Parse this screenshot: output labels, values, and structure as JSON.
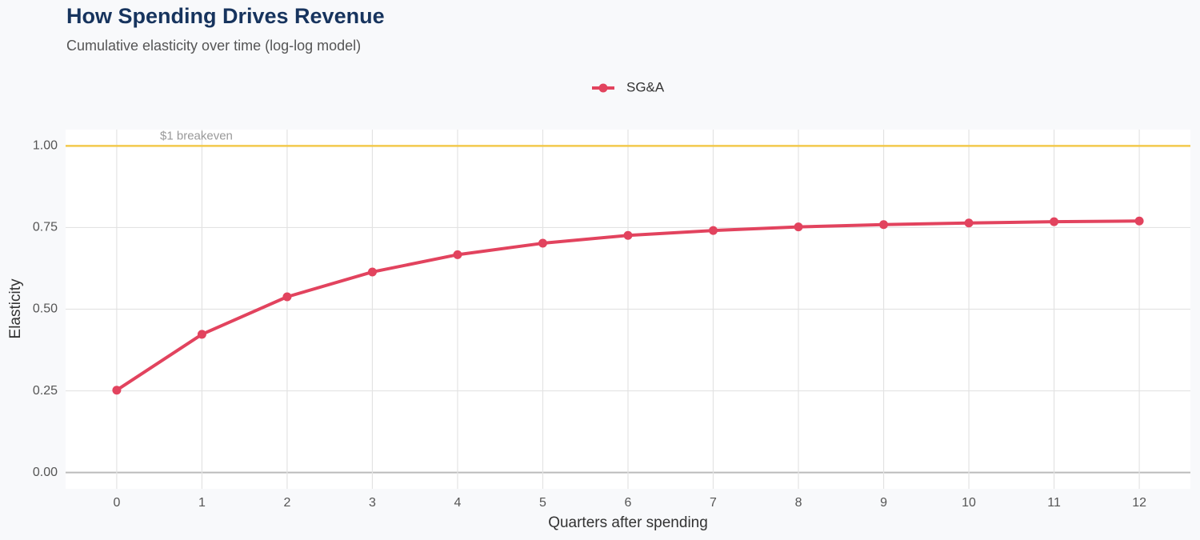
{
  "chart_data": {
    "type": "line",
    "title": "How Spending Drives Revenue",
    "subtitle": "Cumulative elasticity over time (log-log model)",
    "x_label": "Quarters after spending",
    "y_label": "Elasticity",
    "x": [
      0,
      1,
      2,
      3,
      4,
      5,
      6,
      7,
      8,
      9,
      10,
      11,
      12
    ],
    "series": [
      {
        "name": "SG&A",
        "color": "#e2435e",
        "values": [
          0.252,
          0.423,
          0.538,
          0.614,
          0.667,
          0.702,
          0.726,
          0.741,
          0.752,
          0.759,
          0.764,
          0.768,
          0.77
        ]
      }
    ],
    "xlim": [
      -0.6,
      12.6
    ],
    "ylim": [
      -0.05,
      1.05
    ],
    "xticks": [
      0,
      1,
      2,
      3,
      4,
      5,
      6,
      7,
      8,
      9,
      10,
      11,
      12
    ],
    "yticks": [
      {
        "value": 0,
        "label": "0.00"
      },
      {
        "value": 0.25,
        "label": "0.25"
      },
      {
        "value": 0.5,
        "label": "0.50"
      },
      {
        "value": 0.75,
        "label": "0.75"
      },
      {
        "value": 1,
        "label": "1.00"
      }
    ],
    "reference_line": {
      "value": 1,
      "label": "$1 breakeven",
      "color": "#f2c94c"
    },
    "grid": true,
    "legend": "top"
  }
}
